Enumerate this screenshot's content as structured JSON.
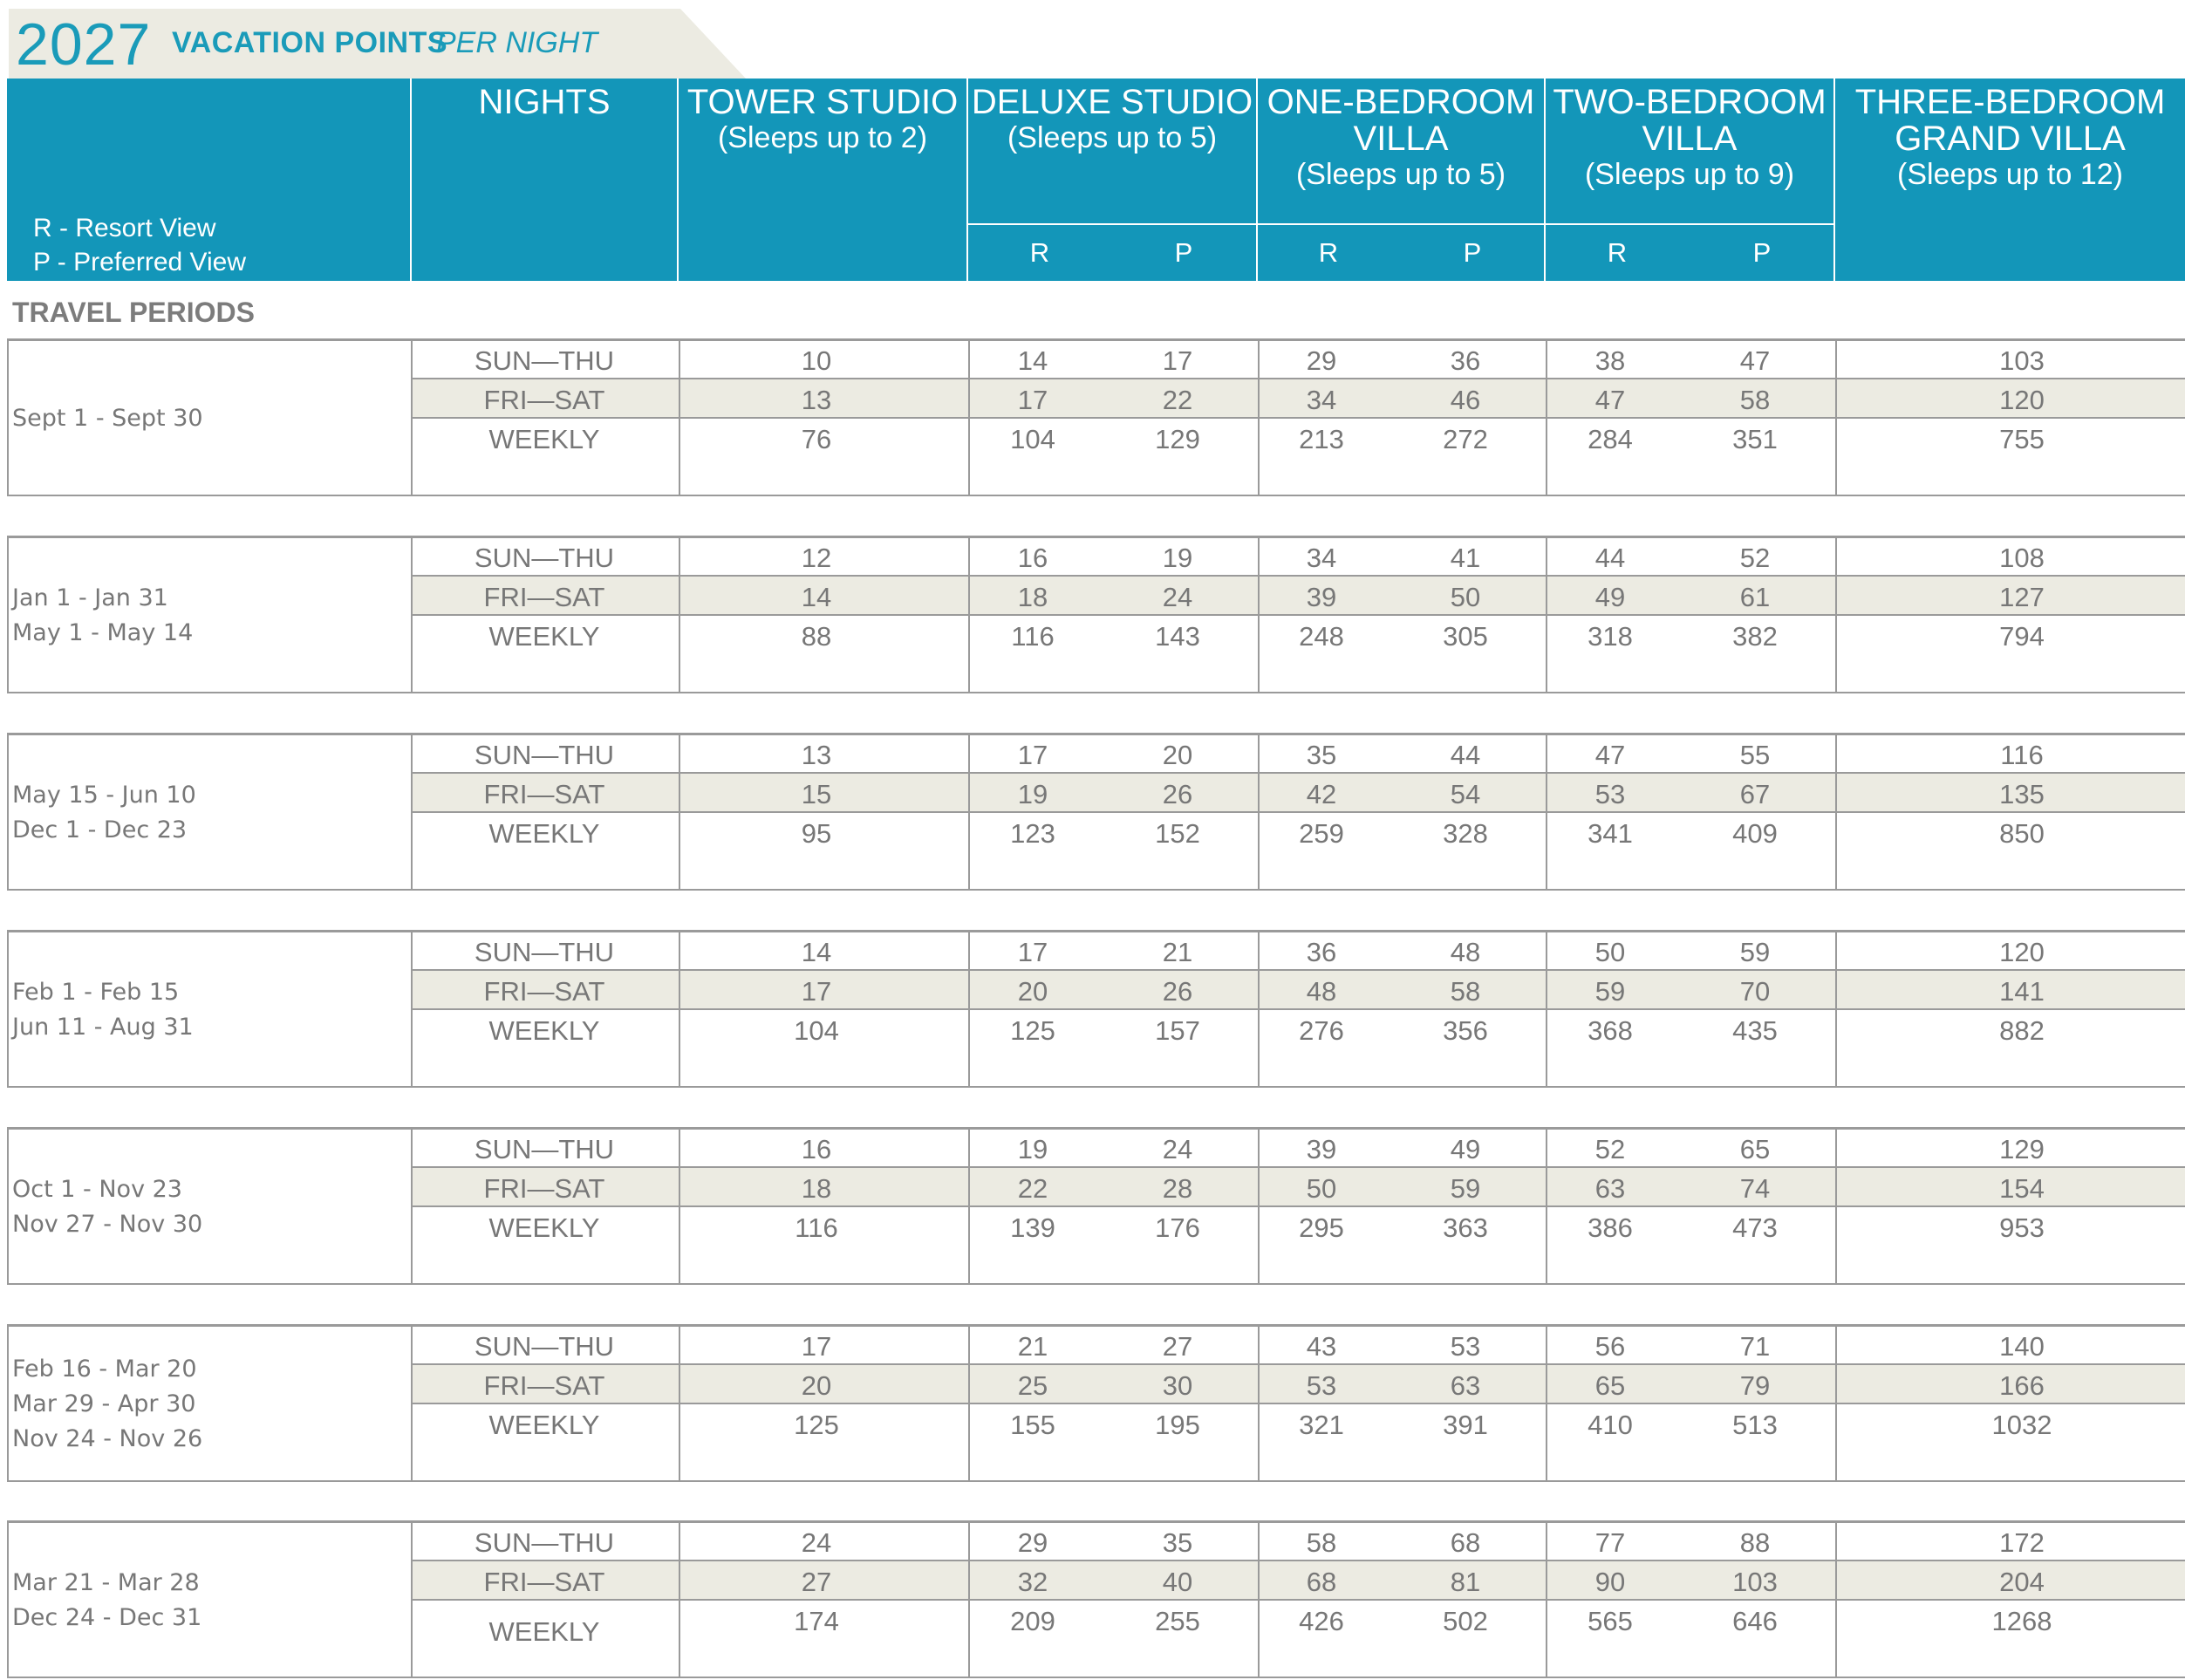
{
  "header": {
    "year": "2027",
    "title_main": "VACATION POINTS",
    "title_italic": "PER NIGHT"
  },
  "columns": {
    "nights": "NIGHTS",
    "tower_studio": {
      "name": "TOWER STUDIO",
      "sleeps": "(Sleeps up to 2)"
    },
    "deluxe_studio": {
      "name": "DELUXE STUDIO",
      "sleeps": "(Sleeps up to 5)"
    },
    "one_bedroom": {
      "name1": "ONE-BEDROOM",
      "name2": "VILLA",
      "sleeps": "(Sleeps up to 5)"
    },
    "two_bedroom": {
      "name1": "TWO-BEDROOM",
      "name2": "VILLA",
      "sleeps": "(Sleeps up to 9)"
    },
    "three_bedroom": {
      "name1": "THREE-BEDROOM",
      "name2": "GRAND VILLA",
      "sleeps": "(Sleeps up to 12)"
    },
    "r": "R",
    "p": "P"
  },
  "legend": {
    "r": "R - Resort View",
    "p": "P - Preferred View"
  },
  "travel_periods_label": "TRAVEL PERIODS",
  "night_labels": [
    "SUN—THU",
    "FRI—SAT",
    "WEEKLY"
  ],
  "periods": [
    {
      "dates": [
        "Sept 1 - Sept 30"
      ],
      "rows": [
        [
          "10",
          "14",
          "17",
          "29",
          "36",
          "38",
          "47",
          "103"
        ],
        [
          "13",
          "17",
          "22",
          "34",
          "46",
          "47",
          "58",
          "120"
        ],
        [
          "76",
          "104",
          "129",
          "213",
          "272",
          "284",
          "351",
          "755"
        ]
      ]
    },
    {
      "dates": [
        "Jan 1 - Jan 31",
        "May 1 - May 14"
      ],
      "rows": [
        [
          "12",
          "16",
          "19",
          "34",
          "41",
          "44",
          "52",
          "108"
        ],
        [
          "14",
          "18",
          "24",
          "39",
          "50",
          "49",
          "61",
          "127"
        ],
        [
          "88",
          "116",
          "143",
          "248",
          "305",
          "318",
          "382",
          "794"
        ]
      ]
    },
    {
      "dates": [
        "May 15 - Jun 10",
        "Dec 1 - Dec 23"
      ],
      "rows": [
        [
          "13",
          "17",
          "20",
          "35",
          "44",
          "47",
          "55",
          "116"
        ],
        [
          "15",
          "19",
          "26",
          "42",
          "54",
          "53",
          "67",
          "135"
        ],
        [
          "95",
          "123",
          "152",
          "259",
          "328",
          "341",
          "409",
          "850"
        ]
      ]
    },
    {
      "dates": [
        "Feb 1 - Feb 15",
        "Jun 11 - Aug 31"
      ],
      "rows": [
        [
          "14",
          "17",
          "21",
          "36",
          "48",
          "50",
          "59",
          "120"
        ],
        [
          "17",
          "20",
          "26",
          "48",
          "58",
          "59",
          "70",
          "141"
        ],
        [
          "104",
          "125",
          "157",
          "276",
          "356",
          "368",
          "435",
          "882"
        ]
      ]
    },
    {
      "dates": [
        "Oct 1 - Nov 23",
        "Nov 27 - Nov 30"
      ],
      "rows": [
        [
          "16",
          "19",
          "24",
          "39",
          "49",
          "52",
          "65",
          "129"
        ],
        [
          "18",
          "22",
          "28",
          "50",
          "59",
          "63",
          "74",
          "154"
        ],
        [
          "116",
          "139",
          "176",
          "295",
          "363",
          "386",
          "473",
          "953"
        ]
      ]
    },
    {
      "dates": [
        "Feb 16 - Mar 20",
        "Mar 29 - Apr 30",
        "Nov 24 - Nov 26"
      ],
      "rows": [
        [
          "17",
          "21",
          "27",
          "43",
          "53",
          "56",
          "71",
          "140"
        ],
        [
          "20",
          "25",
          "30",
          "53",
          "63",
          "65",
          "79",
          "166"
        ],
        [
          "125",
          "155",
          "195",
          "321",
          "391",
          "410",
          "513",
          "1032"
        ]
      ]
    },
    {
      "dates": [
        "Mar 21 - Mar 28",
        "Dec 24 - Dec 31"
      ],
      "rows": [
        [
          "24",
          "29",
          "35",
          "58",
          "68",
          "77",
          "88",
          "172"
        ],
        [
          "27",
          "32",
          "40",
          "68",
          "81",
          "90",
          "103",
          "204"
        ],
        [
          "174",
          "209",
          "255",
          "426",
          "502",
          "565",
          "646",
          "1268"
        ]
      ]
    }
  ]
}
